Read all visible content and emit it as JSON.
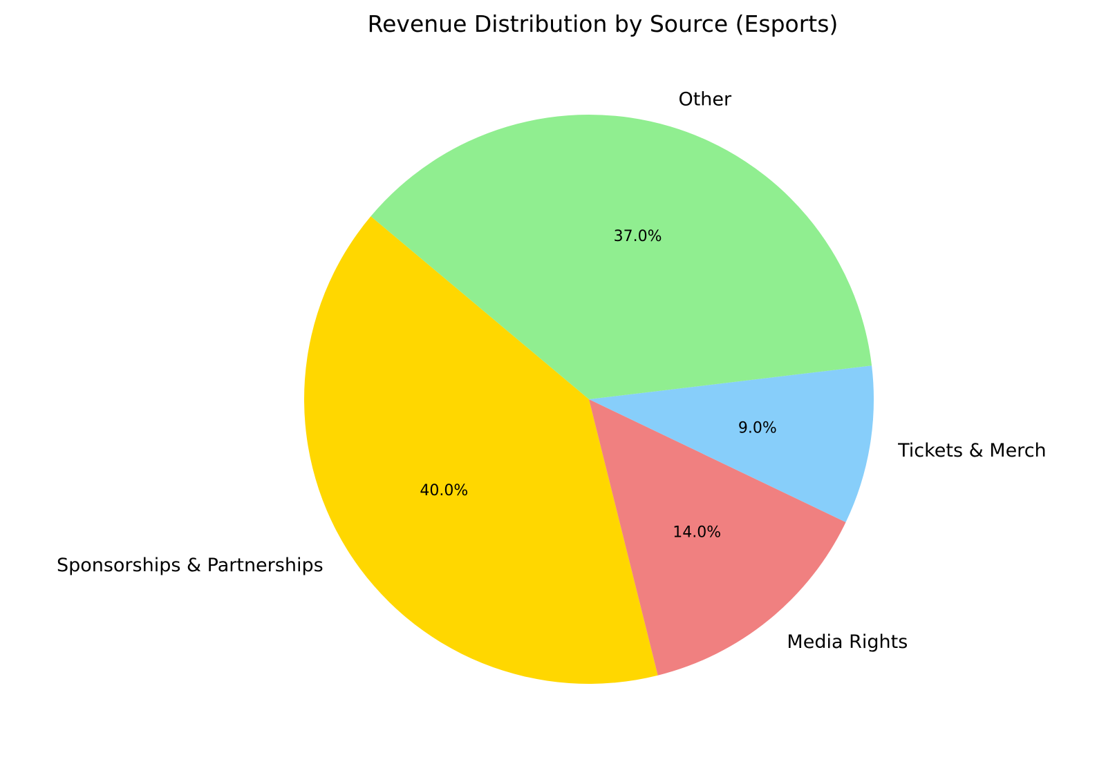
{
  "chart_data": {
    "type": "pie",
    "title": "Revenue Distribution by Source (Esports)",
    "categories": [
      "Sponsorships & Partnerships",
      "Media Rights",
      "Tickets & Merch",
      "Other"
    ],
    "values": [
      40.0,
      14.0,
      9.0,
      37.0
    ],
    "labels_pct": [
      "40.0%",
      "14.0%",
      "9.0%",
      "37.0%"
    ],
    "colors": [
      "#ffd700",
      "#f08080",
      "#87cefa",
      "#90ee90"
    ],
    "start_angle": 140,
    "direction": "counterclockwise",
    "legend": "none"
  }
}
